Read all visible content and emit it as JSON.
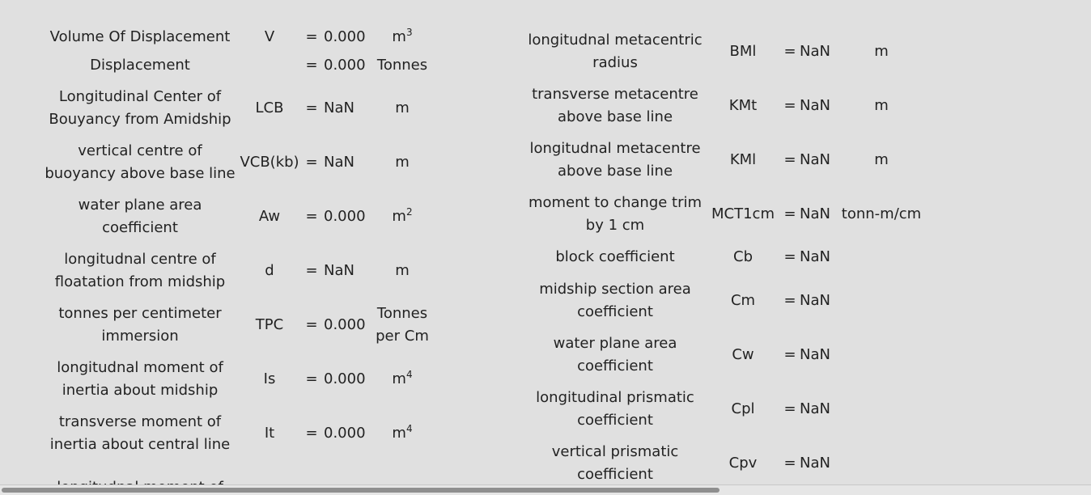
{
  "left_rows": [
    {
      "name": "Volume Of Displacement",
      "symbol": "V",
      "eq": "=",
      "value": "0.000",
      "unit": "m",
      "unit_sup": "3"
    },
    {
      "name": "Displacement",
      "symbol": "",
      "eq": "=",
      "value": "0.000",
      "unit": "Tonnes",
      "unit_sup": ""
    },
    {
      "name": "Longitudinal Center of Bouyancy from Amidship",
      "symbol": "LCB",
      "eq": "=",
      "value": "NaN",
      "unit": "m",
      "unit_sup": ""
    },
    {
      "name": "vertical centre of buoyancy above base line",
      "symbol": "VCB(kb)",
      "eq": "=",
      "value": "NaN",
      "unit": "m",
      "unit_sup": ""
    },
    {
      "name": "water plane area coefficient",
      "symbol": "Aw",
      "eq": "=",
      "value": "0.000",
      "unit": "m",
      "unit_sup": "2"
    },
    {
      "name": "longitudnal centre of floatation from midship",
      "symbol": "d",
      "eq": "=",
      "value": "NaN",
      "unit": "m",
      "unit_sup": ""
    },
    {
      "name": "tonnes per centimeter immersion",
      "symbol": "TPC",
      "eq": "=",
      "value": "0.000",
      "unit": "Tonnes per Cm",
      "unit_sup": ""
    },
    {
      "name": "longitudnal moment of inertia about midship",
      "symbol": "Is",
      "eq": "=",
      "value": "0.000",
      "unit": "m",
      "unit_sup": "4"
    },
    {
      "name": "transverse moment of inertia about central line",
      "symbol": "It",
      "eq": "=",
      "value": "0.000",
      "unit": "m",
      "unit_sup": "4"
    },
    {
      "name": "longitudnal moment of",
      "symbol": "",
      "eq": "",
      "value": "",
      "unit": "",
      "unit_sup": ""
    }
  ],
  "right_rows": [
    {
      "name": "longitudnal metacentric radius",
      "symbol": "BMl",
      "eq": "=",
      "value": "NaN",
      "unit": "m"
    },
    {
      "name": "transverse metacentre above base line",
      "symbol": "KMt",
      "eq": "=",
      "value": "NaN",
      "unit": "m"
    },
    {
      "name": "longitudnal metacentre above base line",
      "symbol": "KMl",
      "eq": "=",
      "value": "NaN",
      "unit": "m"
    },
    {
      "name": "moment to change trim by 1 cm",
      "symbol": "MCT1cm",
      "eq": "=",
      "value": "NaN",
      "unit": "tonn-m/cm"
    },
    {
      "name": "block coefficient",
      "symbol": "Cb",
      "eq": "=",
      "value": "NaN",
      "unit": ""
    },
    {
      "name": "midship section area coefficient",
      "symbol": "Cm",
      "eq": "=",
      "value": "NaN",
      "unit": ""
    },
    {
      "name": "water plane area coefficient",
      "symbol": "Cw",
      "eq": "=",
      "value": "NaN",
      "unit": ""
    },
    {
      "name": "longitudinal prismatic coefficient",
      "symbol": "Cpl",
      "eq": "=",
      "value": "NaN",
      "unit": ""
    },
    {
      "name": "vertical prismatic coefficient",
      "symbol": "Cpv",
      "eq": "=",
      "value": "NaN",
      "unit": ""
    }
  ],
  "scroll": {
    "horizontal_fraction_visible": 0.66,
    "horizontal_position": 0.0
  }
}
